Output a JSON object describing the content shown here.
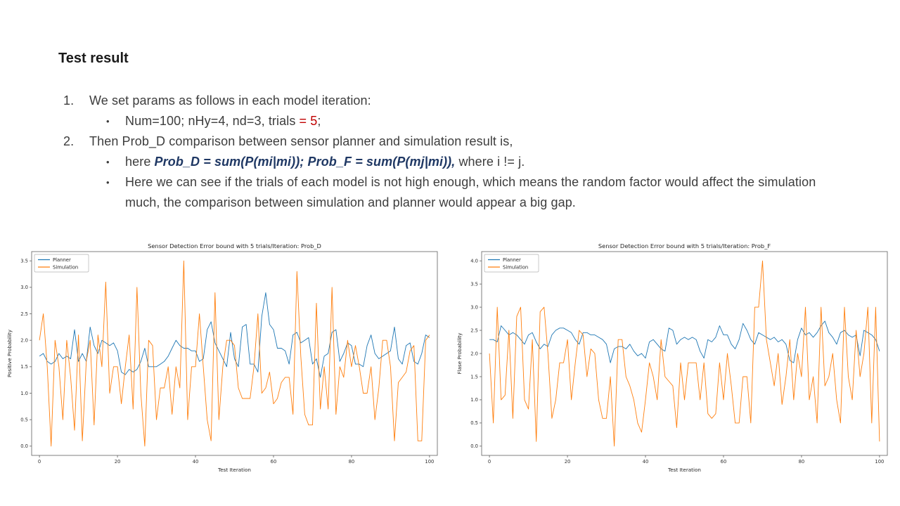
{
  "slide": {
    "title": "Test result",
    "items": [
      {
        "marker": "1.",
        "segments": [
          {
            "t": "We set params as follows in each model iteration:",
            "s": "normal"
          }
        ],
        "sub": [
          {
            "marker": "•",
            "segments": [
              {
                "t": "Num=100; nHy=4, nd=3, trials ",
                "s": "normal"
              },
              {
                "t": "= 5",
                "s": "red"
              },
              {
                "t": ";",
                "s": "normal"
              }
            ]
          }
        ]
      },
      {
        "marker": "2.",
        "segments": [
          {
            "t": "Then Prob_D comparison between sensor planner and simulation result is,",
            "s": "normal"
          }
        ],
        "sub": [
          {
            "marker": "•",
            "segments": [
              {
                "t": "here ",
                "s": "normal"
              },
              {
                "t": "Prob_D = sum(P(mi|mi)); Prob_F  = sum(P(mj|mi)),",
                "s": "navy"
              },
              {
                "t": " where i != j.",
                "s": "normal"
              }
            ]
          },
          {
            "marker": "•",
            "segments": [
              {
                "t": "Here we can see if the trials of each model is not high enough, which means the random factor would affect the simulation much, the comparison between simulation and planner would appear a big gap.",
                "s": "normal"
              }
            ]
          }
        ]
      }
    ]
  },
  "colors": {
    "accent_red": "#c00000",
    "accent_navy": "#1f3864",
    "planner": "#1f77b4",
    "simulation": "#ff7f0e"
  },
  "chart_data": [
    {
      "key": "prob-d",
      "type": "line",
      "title": "Sensor Detection Error bound with 5 trials/Iteration: Prob_D",
      "xlabel": "Test Iteration",
      "ylabel": "Positive Probability",
      "xlim": [
        0,
        100
      ],
      "ylim": [
        0,
        3.5
      ],
      "xticks": [
        0,
        20,
        40,
        60,
        80,
        100
      ],
      "yticks": [
        0,
        0.5,
        1,
        1.5,
        2,
        2.5,
        3,
        3.5
      ],
      "grid": false,
      "legend_position": "upper-left",
      "x_step": 1,
      "series": [
        {
          "name": "Planner",
          "color": "#1f77b4",
          "values": [
            1.7,
            1.75,
            1.6,
            1.55,
            1.6,
            1.75,
            1.65,
            1.7,
            1.65,
            2.2,
            1.6,
            1.75,
            1.6,
            2.25,
            1.9,
            1.75,
            2.0,
            1.95,
            1.9,
            1.95,
            1.8,
            1.4,
            1.35,
            1.45,
            1.4,
            1.45,
            1.6,
            1.85,
            1.5,
            1.5,
            1.5,
            1.55,
            1.6,
            1.7,
            1.85,
            2.0,
            1.9,
            1.85,
            1.85,
            1.8,
            1.8,
            1.6,
            1.65,
            2.2,
            2.35,
            1.95,
            1.8,
            1.65,
            1.5,
            2.15,
            1.65,
            1.5,
            2.25,
            2.3,
            1.55,
            1.55,
            1.4,
            2.45,
            2.9,
            2.3,
            2.2,
            1.85,
            1.85,
            1.8,
            1.55,
            2.1,
            2.15,
            1.95,
            2.0,
            2.05,
            1.55,
            1.65,
            1.3,
            1.7,
            1.75,
            2.15,
            2.2,
            1.6,
            1.75,
            1.95,
            1.9,
            1.55,
            1.55,
            1.5,
            1.9,
            2.1,
            1.75,
            1.65,
            1.7,
            1.75,
            1.8,
            2.25,
            1.65,
            1.55,
            1.9,
            1.95,
            1.6,
            1.55,
            1.75,
            2.1,
            2.05
          ]
        },
        {
          "name": "Simulation",
          "color": "#ff7f0e",
          "values": [
            2.0,
            2.5,
            1.5,
            0.0,
            2.0,
            1.5,
            0.5,
            2.0,
            1.3,
            0.3,
            2.1,
            0.1,
            1.6,
            2.0,
            0.4,
            2.1,
            1.5,
            3.1,
            1.0,
            1.5,
            1.5,
            0.8,
            1.5,
            2.1,
            0.7,
            3.0,
            1.0,
            0.0,
            2.0,
            1.9,
            0.5,
            1.1,
            1.1,
            1.5,
            0.6,
            1.5,
            1.1,
            3.5,
            0.5,
            1.5,
            1.5,
            2.5,
            1.5,
            0.5,
            0.1,
            2.9,
            0.5,
            1.5,
            2.0,
            2.0,
            1.9,
            1.1,
            0.9,
            0.9,
            0.9,
            1.5,
            2.5,
            1.0,
            1.1,
            1.4,
            0.8,
            0.9,
            1.2,
            1.3,
            1.3,
            0.6,
            3.3,
            1.7,
            0.6,
            0.4,
            0.4,
            2.7,
            0.7,
            1.5,
            0.7,
            3.0,
            0.6,
            1.5,
            1.3,
            2.0,
            1.5,
            1.9,
            1.5,
            1.0,
            1.0,
            1.5,
            0.5,
            1.1,
            2.0,
            2.0,
            1.5,
            0.1,
            1.2,
            1.3,
            1.4,
            1.8,
            1.9,
            0.1,
            0.1,
            2.0,
            2.1
          ]
        }
      ]
    },
    {
      "key": "prob-f",
      "type": "line",
      "title": "Sensor Detection Error bound with 5 trials/Iteration: Prob_F",
      "xlabel": "Test Iteration",
      "ylabel": "Flase Probability",
      "xlim": [
        0,
        100
      ],
      "ylim": [
        0,
        4.0
      ],
      "xticks": [
        0,
        20,
        40,
        60,
        80,
        100
      ],
      "yticks": [
        0,
        0.5,
        1,
        1.5,
        2,
        2.5,
        3,
        3.5,
        4
      ],
      "grid": false,
      "legend_position": "upper-left",
      "x_step": 1,
      "series": [
        {
          "name": "Planner",
          "color": "#1f77b4",
          "values": [
            2.3,
            2.3,
            2.25,
            2.6,
            2.5,
            2.4,
            2.45,
            2.4,
            2.3,
            2.2,
            2.4,
            2.45,
            2.25,
            2.1,
            2.2,
            2.15,
            2.4,
            2.5,
            2.55,
            2.55,
            2.5,
            2.45,
            2.3,
            2.2,
            2.45,
            2.45,
            2.4,
            2.4,
            2.35,
            2.3,
            2.2,
            1.8,
            2.1,
            2.15,
            2.15,
            2.1,
            2.2,
            2.05,
            1.95,
            2.0,
            1.9,
            2.25,
            2.3,
            2.2,
            2.1,
            2.05,
            2.55,
            2.5,
            2.2,
            2.3,
            2.35,
            2.3,
            2.35,
            2.3,
            2.05,
            1.9,
            2.3,
            2.25,
            2.35,
            2.6,
            2.4,
            2.4,
            2.2,
            2.1,
            2.3,
            2.65,
            2.5,
            2.3,
            2.2,
            2.45,
            2.4,
            2.35,
            2.3,
            2.35,
            2.25,
            2.3,
            2.2,
            1.85,
            1.8,
            2.3,
            2.55,
            2.4,
            2.45,
            2.35,
            2.45,
            2.6,
            2.7,
            2.45,
            2.35,
            2.2,
            2.45,
            2.5,
            2.4,
            2.35,
            2.4,
            1.95,
            2.5,
            2.45,
            2.4,
            2.3,
            2.05
          ]
        },
        {
          "name": "Simulation",
          "color": "#ff7f0e",
          "values": [
            2.0,
            0.5,
            3.0,
            1.0,
            1.1,
            2.5,
            0.6,
            2.8,
            3.0,
            1.0,
            0.8,
            2.3,
            0.1,
            2.9,
            3.0,
            2.0,
            0.6,
            1.0,
            1.8,
            1.8,
            2.3,
            1.0,
            1.8,
            2.5,
            2.4,
            1.5,
            2.1,
            2.0,
            1.0,
            0.6,
            0.6,
            1.5,
            0.0,
            2.3,
            2.3,
            1.5,
            1.3,
            1.0,
            0.5,
            0.3,
            1.0,
            1.8,
            1.5,
            1.0,
            2.3,
            1.5,
            1.4,
            1.3,
            0.4,
            1.8,
            1.0,
            1.8,
            1.8,
            1.8,
            1.0,
            1.8,
            0.7,
            0.6,
            0.7,
            1.8,
            1.0,
            2.0,
            1.3,
            0.5,
            0.5,
            1.5,
            1.5,
            0.5,
            3.0,
            3.0,
            4.0,
            2.3,
            1.8,
            1.3,
            2.0,
            0.9,
            1.5,
            2.3,
            1.0,
            2.0,
            1.5,
            3.0,
            1.0,
            1.5,
            0.5,
            3.0,
            1.3,
            1.5,
            2.0,
            1.0,
            0.5,
            3.0,
            1.5,
            1.0,
            2.5,
            1.5,
            2.0,
            3.0,
            0.5,
            3.0,
            0.1
          ]
        }
      ]
    }
  ]
}
